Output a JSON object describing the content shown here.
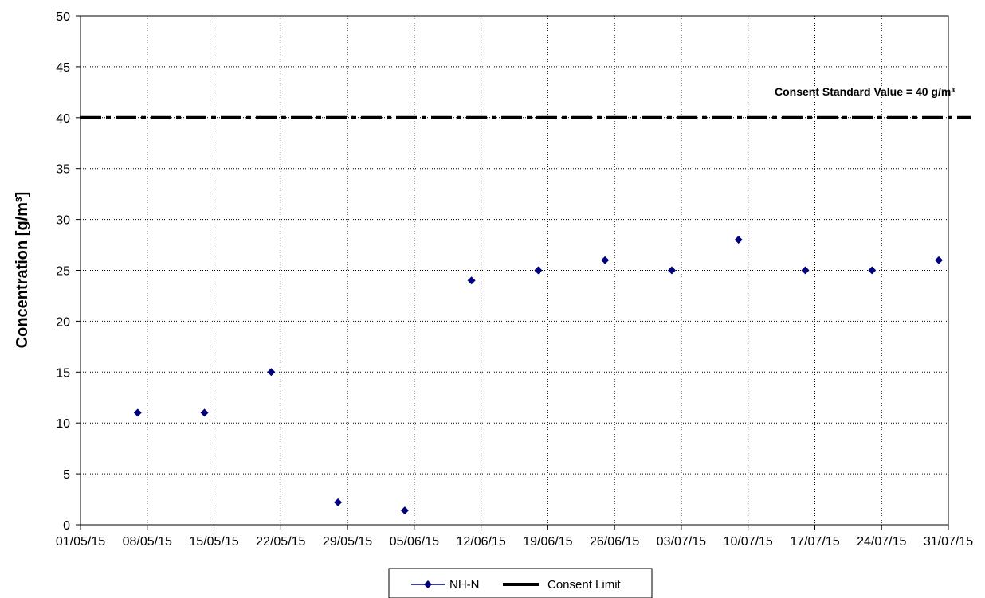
{
  "chart_data": {
    "type": "scatter",
    "title": "",
    "xlabel": "",
    "ylabel": "Concentration [g/m³]",
    "ylim": [
      0,
      50
    ],
    "yticks": [
      0,
      5,
      10,
      15,
      20,
      25,
      30,
      35,
      40,
      45,
      50
    ],
    "xlim": [
      "01/05/15",
      "31/07/15"
    ],
    "xticks": [
      "01/05/15",
      "08/05/15",
      "15/05/15",
      "22/05/15",
      "29/05/15",
      "05/06/15",
      "12/06/15",
      "19/06/15",
      "26/06/15",
      "03/07/15",
      "10/07/15",
      "17/07/15",
      "24/07/15",
      "31/07/15"
    ],
    "grid": true,
    "series": [
      {
        "name": "NH-N",
        "color": "#00007f",
        "marker": "diamond",
        "points": [
          {
            "x": "07/05/15",
            "y": 11
          },
          {
            "x": "14/05/15",
            "y": 11
          },
          {
            "x": "21/05/15",
            "y": 15
          },
          {
            "x": "28/05/15",
            "y": 2.2
          },
          {
            "x": "04/06/15",
            "y": 1.4
          },
          {
            "x": "11/06/15",
            "y": 24
          },
          {
            "x": "18/06/15",
            "y": 25
          },
          {
            "x": "25/06/15",
            "y": 26
          },
          {
            "x": "02/07/15",
            "y": 25
          },
          {
            "x": "09/07/15",
            "y": 28
          },
          {
            "x": "16/07/15",
            "y": 25
          },
          {
            "x": "23/07/15",
            "y": 25
          },
          {
            "x": "30/07/15",
            "y": 26
          }
        ]
      },
      {
        "name": "Consent Limit",
        "color": "#000000",
        "style": "dash-dot",
        "y": 40
      }
    ],
    "annotations": [
      {
        "text": "Consent Standard Value = 40 g/m³"
      }
    ],
    "legend": {
      "position": "bottom-center",
      "entries": [
        "NH-N",
        "Consent Limit"
      ]
    }
  }
}
